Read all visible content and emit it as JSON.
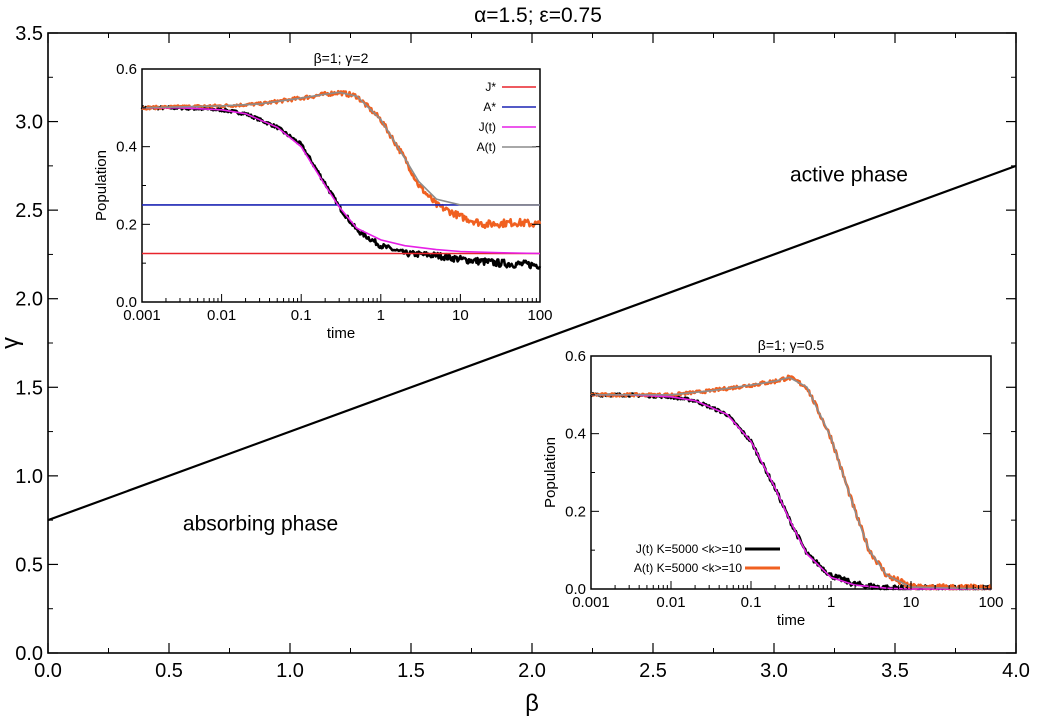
{
  "chart_data": [
    {
      "type": "line",
      "title": "α=1.5; ε=0.75",
      "xlabel": "β",
      "ylabel": "γ",
      "xlim": [
        0,
        4
      ],
      "ylim": [
        0,
        3.5
      ],
      "xticks": [
        "0.0",
        "0.5",
        "1.0",
        "1.5",
        "2.0",
        "2.5",
        "3.0",
        "3.5",
        "4.0"
      ],
      "yticks": [
        "0.0",
        "0.5",
        "1.0",
        "1.5",
        "2.0",
        "2.5",
        "3.0",
        "3.5"
      ],
      "series": [
        {
          "x": [
            0,
            4
          ],
          "y": [
            0.75,
            2.75
          ],
          "color": "#000000"
        }
      ],
      "annotations": [
        {
          "text": "active phase",
          "x": 3.5,
          "y": 2.7
        },
        {
          "text": "absorbing phase",
          "x": 0.95,
          "y": 0.73
        }
      ],
      "grid": false
    },
    {
      "type": "line",
      "title": "β=1; γ=2",
      "xlabel": "time",
      "ylabel": "Population",
      "xscale": "log",
      "xlim": [
        0.001,
        100
      ],
      "ylim": [
        0,
        0.6
      ],
      "xticks": [
        "0.001",
        "0.01",
        "0.1",
        "1",
        "10",
        "100"
      ],
      "yticks": [
        "0.0",
        "0.2",
        "0.4",
        "0.6"
      ],
      "legend_position": "top-right",
      "series": [
        {
          "name": "J*",
          "color": "#e8242c",
          "x": [
            0.001,
            100
          ],
          "y": [
            0.125,
            0.125
          ]
        },
        {
          "name": "A*",
          "color": "#1c24b4",
          "x": [
            0.001,
            100
          ],
          "y": [
            0.25,
            0.25
          ]
        },
        {
          "name": "J(t)",
          "color": "#e620e6",
          "x": [
            0.001,
            0.003,
            0.01,
            0.02,
            0.05,
            0.1,
            0.2,
            0.3,
            0.5,
            1,
            2,
            5,
            10,
            30,
            100
          ],
          "y": [
            0.5,
            0.5,
            0.495,
            0.485,
            0.45,
            0.4,
            0.3,
            0.245,
            0.19,
            0.16,
            0.145,
            0.135,
            0.13,
            0.127,
            0.125
          ]
        },
        {
          "name": "A(t)",
          "color": "#8c8c8c",
          "x": [
            0.001,
            0.01,
            0.03,
            0.1,
            0.2,
            0.3,
            0.5,
            1,
            2,
            3,
            5,
            10,
            30,
            100
          ],
          "y": [
            0.5,
            0.505,
            0.51,
            0.525,
            0.535,
            0.54,
            0.53,
            0.47,
            0.37,
            0.31,
            0.265,
            0.25,
            0.25,
            0.25
          ]
        },
        {
          "color": "#000000",
          "style": "noisy",
          "x": [
            0.001,
            0.003,
            0.01,
            0.02,
            0.05,
            0.1,
            0.2,
            0.3,
            0.5,
            1,
            2,
            5,
            10,
            30,
            100
          ],
          "y": [
            0.5,
            0.5,
            0.495,
            0.485,
            0.45,
            0.405,
            0.305,
            0.245,
            0.185,
            0.145,
            0.125,
            0.12,
            0.11,
            0.1,
            0.095
          ]
        },
        {
          "color": "#f06020",
          "style": "noisy",
          "x": [
            0.001,
            0.01,
            0.03,
            0.1,
            0.2,
            0.3,
            0.5,
            1,
            2,
            3,
            5,
            10,
            20,
            50,
            100
          ],
          "y": [
            0.5,
            0.505,
            0.51,
            0.525,
            0.535,
            0.54,
            0.53,
            0.47,
            0.37,
            0.3,
            0.25,
            0.22,
            0.2,
            0.205,
            0.2
          ]
        }
      ]
    },
    {
      "type": "line",
      "title": "β=1; γ=0.5",
      "xlabel": "time",
      "ylabel": "Population",
      "xscale": "log",
      "xlim": [
        0.001,
        100
      ],
      "ylim": [
        0,
        0.6
      ],
      "xticks": [
        "0.001",
        "0.01",
        "0.1",
        "1",
        "10",
        "100"
      ],
      "yticks": [
        "0.0",
        "0.2",
        "0.4",
        "0.6"
      ],
      "legend_position": "bottom-left",
      "series": [
        {
          "color": "#e620e6",
          "x": [
            0.001,
            0.003,
            0.01,
            0.02,
            0.05,
            0.1,
            0.2,
            0.3,
            0.5,
            1,
            2,
            5,
            10,
            100
          ],
          "y": [
            0.5,
            0.5,
            0.495,
            0.485,
            0.45,
            0.38,
            0.26,
            0.18,
            0.09,
            0.03,
            0.01,
            0.002,
            0.0,
            0.0
          ]
        },
        {
          "color": "#8c8c8c",
          "x": [
            0.001,
            0.01,
            0.03,
            0.1,
            0.2,
            0.3,
            0.5,
            1,
            2,
            3,
            5,
            10,
            100
          ],
          "y": [
            0.5,
            0.5,
            0.51,
            0.525,
            0.535,
            0.545,
            0.52,
            0.39,
            0.2,
            0.1,
            0.035,
            0.005,
            0.0
          ]
        },
        {
          "name": "J(t) K=5000 <k>=10",
          "color": "#000000",
          "style": "noisy",
          "x": [
            0.001,
            0.003,
            0.01,
            0.02,
            0.05,
            0.1,
            0.2,
            0.3,
            0.5,
            1,
            2,
            5,
            10,
            100
          ],
          "y": [
            0.5,
            0.5,
            0.495,
            0.485,
            0.45,
            0.38,
            0.26,
            0.18,
            0.09,
            0.035,
            0.012,
            0.002,
            0.0,
            0.0
          ]
        },
        {
          "name": "A(t) K=5000 <k>=10",
          "color": "#f06020",
          "style": "noisy",
          "x": [
            0.001,
            0.01,
            0.03,
            0.1,
            0.2,
            0.3,
            0.5,
            1,
            2,
            3,
            5,
            10,
            100
          ],
          "y": [
            0.5,
            0.5,
            0.51,
            0.525,
            0.535,
            0.545,
            0.52,
            0.39,
            0.2,
            0.1,
            0.035,
            0.005,
            0.0
          ]
        }
      ]
    }
  ]
}
